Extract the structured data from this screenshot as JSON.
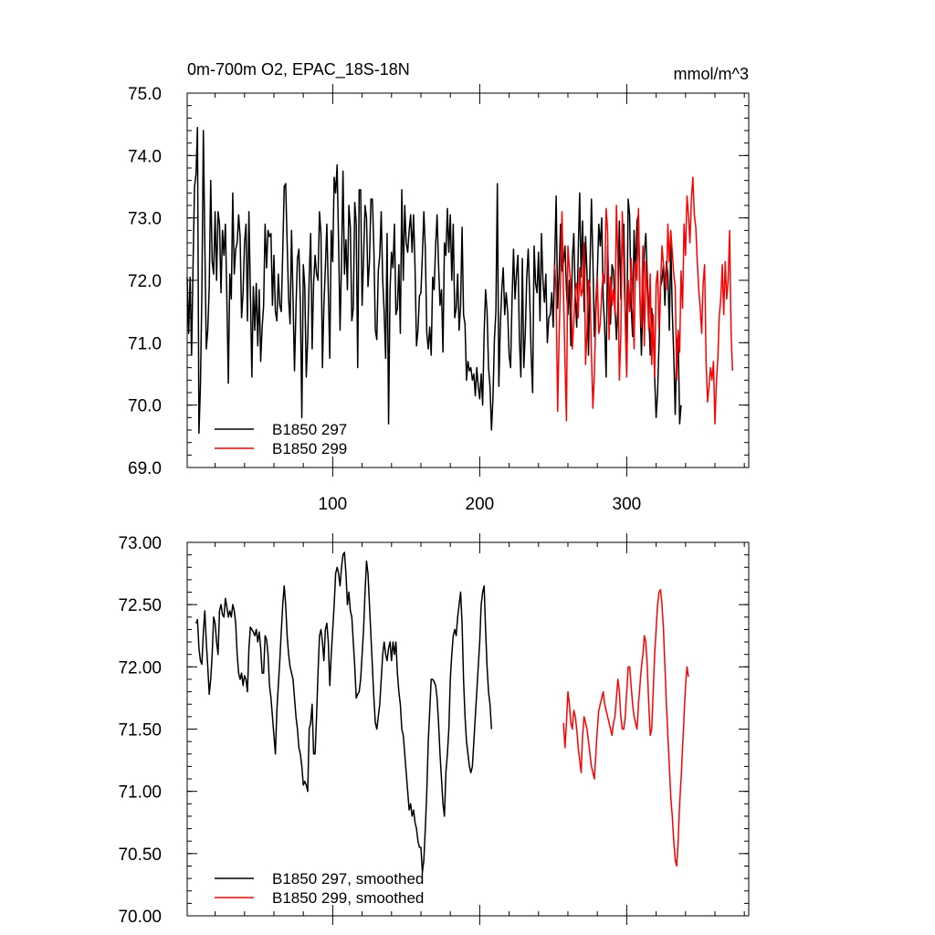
{
  "chart_data": [
    {
      "type": "line",
      "title": "0m-700m O2, EPAC_18S-18N",
      "units": "mmol/m^3",
      "xlabel": "",
      "ylabel": "",
      "xlim": [
        1,
        383
      ],
      "ylim": [
        69.0,
        75.0
      ],
      "x_ticks": [
        100,
        200,
        300
      ],
      "x_tick_labels": [
        "100",
        "200",
        "300"
      ],
      "y_ticks": [
        69,
        70,
        71,
        72,
        73,
        74,
        75
      ],
      "y_tick_labels": [
        "69.0",
        "70.0",
        "71.0",
        "72.0",
        "73.0",
        "74.0",
        "75.0"
      ],
      "legend_position": "bottom-left",
      "grid": false,
      "series": [
        {
          "name": "B1850 297",
          "color": "#000000",
          "x_start": 1,
          "values": [
            72.05,
            71.15,
            72.05,
            70.8,
            72.25,
            73.5,
            73.7,
            74.45,
            69.55,
            70.3,
            71.8,
            74.4,
            72.6,
            70.9,
            71.2,
            71.9,
            73.6,
            72.3,
            72.1,
            73.1,
            72.0,
            73.1,
            72.9,
            71.8,
            72.8,
            72.4,
            72.9,
            71.7,
            70.35,
            72.1,
            71.7,
            73.4,
            72.1,
            72.5,
            72.6,
            73.05,
            72.7,
            71.4,
            71.8,
            72.6,
            72.9,
            71.35,
            73.1,
            71.8,
            70.45,
            71.9,
            71.2,
            71.95,
            70.95,
            71.85,
            70.7,
            71.25,
            71.6,
            72.9,
            72.2,
            72.8,
            72.7,
            72.75,
            71.6,
            72.4,
            71.5,
            71.35,
            72.1,
            71.6,
            71.5,
            72.45,
            73.5,
            73.55,
            72.6,
            71.7,
            71.3,
            72.8,
            71.7,
            70.55,
            71.55,
            72.35,
            72.5,
            71.6,
            69.8,
            72.25,
            71.9,
            70.45,
            71.05,
            72.05,
            72.75,
            70.9,
            71.95,
            72.4,
            72.1,
            72.0,
            73.1,
            72.75,
            70.6,
            71.6,
            72.2,
            72.9,
            71.85,
            70.75,
            72.8,
            72.3,
            73.65,
            73.4,
            73.85,
            72.6,
            71.2,
            72.3,
            73.75,
            72.1,
            72.65,
            71.85,
            73.2,
            72.85,
            71.35,
            71.55,
            73.25,
            72.9,
            70.6,
            73.45,
            73.45,
            71.6,
            72.35,
            73.2,
            73.0,
            71.9,
            72.3,
            73.3,
            73.3,
            72.5,
            71.2,
            71.05,
            72.15,
            72.4,
            73.1,
            72.0,
            71.5,
            70.75,
            72.75,
            69.7,
            71.85,
            72.45,
            72.2,
            72.9,
            71.45,
            71.55,
            72.25,
            71.15,
            73.45,
            72.0,
            73.2,
            72.6,
            72.45,
            72.8,
            73.05,
            72.45,
            73.05,
            72.2,
            70.95,
            71.2,
            71.75,
            71.8,
            72.4,
            73.1,
            72.5,
            71.15,
            70.9,
            71.25,
            70.8,
            72.05,
            71.85,
            72.55,
            73.05,
            72.25,
            71.6,
            71.85,
            70.85,
            72.6,
            72.4,
            73.15,
            72.45,
            73.05,
            72.0,
            72.9,
            71.4,
            71.55,
            72.1,
            71.2,
            71.6,
            72.85,
            71.45,
            71.3,
            70.4,
            70.7,
            70.55,
            70.6,
            70.4,
            70.5,
            70.15,
            70.6,
            70.3,
            70.1,
            70.5,
            70.0,
            71.15,
            71.85,
            71.5,
            70.6,
            70.3,
            69.6,
            70.1,
            71.05,
            71.5,
            73.55,
            70.3,
            71.25,
            71.85,
            72.2,
            71.45,
            71.8,
            71.5,
            70.8,
            70.6,
            71.7,
            72.5,
            71.7,
            72.1,
            72.4,
            71.05,
            70.45,
            72.35,
            70.6,
            71.15,
            72.05,
            72.5,
            71.75,
            70.8,
            70.2,
            72.55,
            71.95,
            71.8,
            72.45,
            71.35,
            72.75,
            72.0,
            71.65,
            72.1,
            71.0,
            71.4,
            71.45,
            71.8,
            71.25,
            72.3,
            73.35,
            71.55,
            72.1,
            72.9,
            72.15,
            72.3,
            72.55,
            71.85,
            71.45,
            72.0,
            70.95,
            72.35,
            72.75,
            71.75,
            71.25,
            72.45,
            73.4,
            72.05,
            72.95,
            71.5,
            72.7,
            72.1,
            70.8,
            72.2,
            73.3,
            72.3,
            71.1,
            71.65,
            72.1,
            72.9,
            72.55,
            73.0,
            71.7,
            71.25,
            70.45,
            72.55,
            71.75,
            71.3,
            72.25,
            72.15,
            71.6,
            71.05,
            71.55,
            72.95,
            71.7,
            72.85,
            72.9,
            71.55,
            71.0,
            73.3,
            73.05,
            71.6,
            71.1,
            72.8,
            72.1,
            72.95,
            73.05,
            71.75,
            70.8,
            71.65,
            72.45,
            72.75,
            72.05,
            71.5,
            70.8,
            71.55,
            71.2,
            70.45,
            69.8,
            70.2,
            71.0,
            71.9,
            72.0,
            72.25,
            71.6,
            72.3,
            72.1,
            71.2,
            72.6,
            71.5,
            70.8,
            69.85,
            70.95,
            71.15,
            69.7,
            70.0
          ]
        },
        {
          "name": "B1850 299",
          "color": "#ff0000",
          "x_start": 251,
          "values": [
            72.25,
            71.8,
            69.9,
            71.1,
            72.0,
            73.1,
            71.8,
            70.7,
            69.75,
            72.55,
            72.2,
            71.9,
            70.9,
            71.35,
            71.85,
            71.95,
            71.4,
            72.2,
            71.75,
            71.85,
            72.6,
            70.65,
            71.2,
            72.0,
            71.9,
            70.8,
            69.95,
            70.5,
            71.45,
            72.05,
            71.15,
            71.3,
            71.8,
            72.1,
            71.95,
            73.15,
            72.8,
            71.05,
            72.05,
            71.6,
            71.85,
            71.45,
            73.2,
            72.35,
            70.4,
            71.1,
            73.1,
            72.25,
            71.35,
            70.45,
            72.0,
            71.5,
            72.35,
            71.85,
            70.9,
            72.3,
            72.0,
            73.15,
            71.7,
            71.25,
            72.55,
            70.95,
            72.3,
            71.8,
            71.2,
            72.1,
            70.65,
            71.45,
            70.45,
            71.95,
            72.15,
            71.2,
            71.9,
            72.55,
            72.25,
            72.05,
            71.85,
            72.9,
            72.3,
            72.8,
            72.45,
            72.1,
            71.9,
            70.4,
            71.2,
            70.85,
            72.15,
            71.55,
            72.9,
            72.4,
            73.35,
            73.05,
            72.6,
            73.3,
            73.65,
            73.05,
            72.85,
            72.3,
            71.85,
            71.55,
            71.15,
            71.95,
            72.25,
            70.7,
            70.05,
            70.3,
            70.6,
            70.4,
            70.7,
            69.7,
            70.35,
            70.75,
            71.45,
            71.7,
            72.25,
            71.45,
            72.3,
            71.7,
            72.0,
            72.8,
            71.15,
            70.55
          ]
        }
      ]
    },
    {
      "type": "line",
      "title": "",
      "xlabel": "",
      "ylabel": "",
      "xlim": [
        1,
        383
      ],
      "ylim": [
        70.0,
        73.0
      ],
      "x_ticks": [
        100,
        200,
        300
      ],
      "y_ticks": [
        70.0,
        70.5,
        71.0,
        71.5,
        72.0,
        72.5,
        73.0
      ],
      "y_tick_labels": [
        "70.00",
        "70.50",
        "71.00",
        "71.50",
        "72.00",
        "72.50",
        "73.00"
      ],
      "legend_position": "bottom-left",
      "grid": false,
      "series": [
        {
          "name": "B1850 297, smoothed",
          "color": "#000000",
          "x_start": 7,
          "values": [
            72.35,
            72.38,
            72.15,
            72.05,
            72.02,
            72.28,
            72.45,
            72.2,
            72.0,
            71.78,
            71.9,
            72.1,
            72.4,
            72.35,
            72.2,
            72.1,
            72.45,
            72.5,
            72.42,
            72.4,
            72.55,
            72.48,
            72.4,
            72.45,
            72.4,
            72.5,
            72.45,
            72.35,
            72.1,
            71.95,
            71.9,
            71.95,
            71.85,
            71.93,
            71.9,
            71.8,
            72.15,
            72.32,
            72.3,
            72.28,
            72.25,
            72.3,
            72.2,
            72.28,
            72.15,
            71.95,
            71.95,
            72.25,
            72.22,
            72.1,
            71.85,
            71.75,
            71.6,
            71.45,
            71.3,
            71.65,
            71.85,
            72.05,
            72.28,
            72.5,
            72.65,
            72.5,
            72.25,
            72.1,
            72.0,
            71.95,
            71.9,
            71.75,
            71.6,
            71.5,
            71.35,
            71.3,
            71.2,
            71.05,
            71.08,
            71.05,
            71.0,
            71.5,
            71.55,
            71.7,
            71.3,
            71.3,
            71.6,
            71.95,
            72.25,
            72.3,
            72.2,
            72.05,
            72.3,
            72.35,
            72.2,
            71.85,
            72.1,
            72.3,
            72.5,
            72.75,
            72.8,
            72.75,
            72.65,
            72.8,
            72.9,
            72.92,
            72.75,
            72.5,
            72.6,
            72.45,
            72.4,
            72.2,
            72.0,
            71.75,
            71.78,
            71.8,
            71.9,
            72.1,
            72.3,
            72.6,
            72.85,
            72.75,
            72.5,
            72.25,
            72.0,
            71.75,
            71.55,
            71.5,
            71.6,
            71.7,
            71.9,
            72.1,
            72.2,
            72.1,
            72.05,
            72.15,
            72.2,
            72.05,
            72.2,
            72.1,
            72.2,
            71.95,
            71.8,
            71.7,
            71.5,
            71.45,
            71.3,
            71.15,
            71.0,
            70.85,
            70.9,
            70.8,
            70.85,
            70.75,
            70.7,
            70.6,
            70.55,
            70.55,
            70.35,
            70.45,
            70.7,
            71.0,
            71.4,
            71.65,
            71.9,
            71.9,
            71.88,
            71.85,
            71.75,
            71.55,
            71.3,
            71.1,
            70.9,
            70.8,
            71.15,
            71.3,
            71.5,
            71.9,
            72.1,
            72.25,
            72.3,
            72.25,
            72.4,
            72.5,
            72.6,
            72.35,
            71.9,
            71.6,
            71.4,
            71.3,
            71.2,
            71.15,
            71.2,
            71.4,
            71.6,
            71.8,
            72.0,
            72.2,
            72.5,
            72.6,
            72.65,
            72.3,
            72.0,
            71.8,
            71.7,
            71.5
          ]
        },
        {
          "name": "B1850 299, smoothed",
          "color": "#ff0000",
          "x_start": 257,
          "values": [
            71.55,
            71.35,
            71.55,
            71.8,
            71.7,
            71.55,
            71.5,
            71.65,
            71.6,
            71.5,
            71.35,
            71.25,
            71.15,
            71.45,
            71.6,
            71.55,
            71.5,
            71.4,
            71.3,
            71.2,
            71.15,
            71.1,
            71.3,
            71.5,
            71.65,
            71.7,
            71.75,
            71.8,
            71.7,
            71.65,
            71.6,
            71.55,
            71.5,
            71.45,
            71.55,
            71.6,
            71.75,
            71.9,
            71.8,
            71.6,
            71.5,
            71.5,
            71.6,
            71.8,
            72.0,
            72.0,
            71.85,
            71.7,
            71.6,
            71.55,
            71.5,
            71.7,
            71.85,
            72.0,
            72.1,
            72.25,
            72.2,
            72.0,
            71.7,
            71.45,
            71.5,
            71.8,
            72.1,
            72.3,
            72.5,
            72.6,
            72.62,
            72.5,
            72.3,
            72.0,
            71.7,
            71.45,
            71.2,
            70.95,
            70.8,
            70.6,
            70.45,
            70.4,
            70.6,
            70.9,
            71.1,
            71.35,
            71.6,
            71.85,
            72.0,
            71.92
          ]
        }
      ]
    }
  ]
}
